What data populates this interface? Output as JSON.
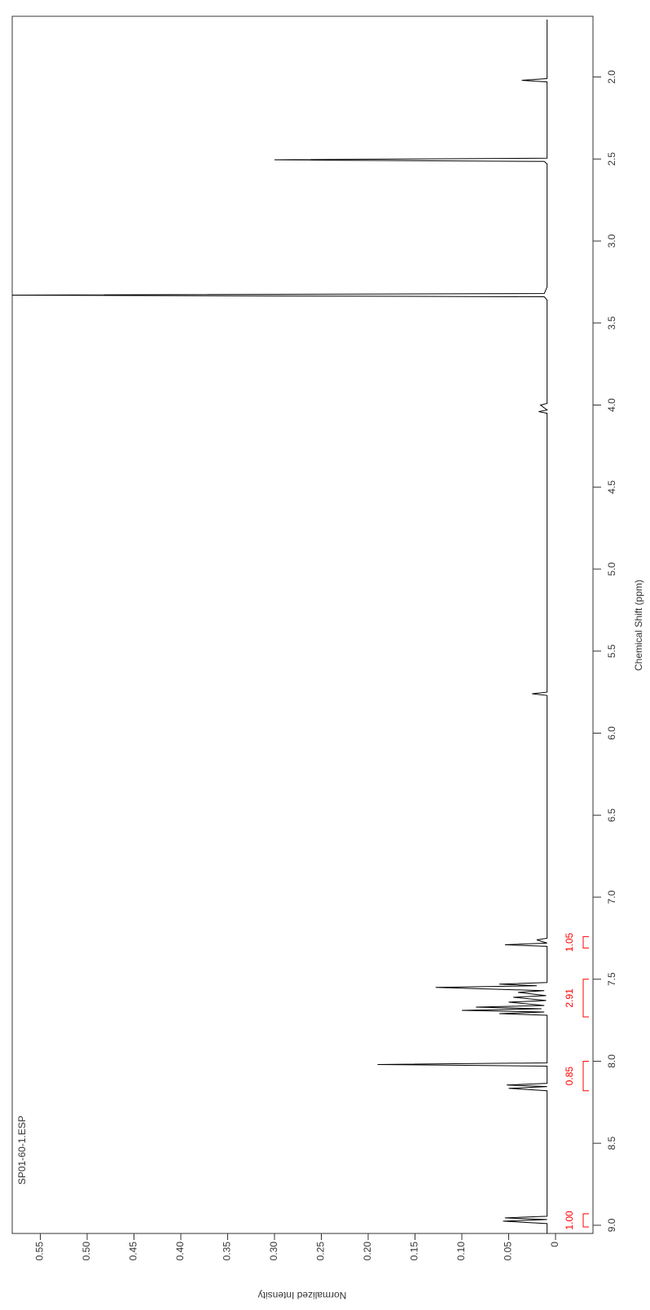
{
  "chart_data": {
    "type": "line",
    "title": "SP01-60-1.ESP",
    "x_label": "Chemical Shift (ppm)",
    "y_label": "Normalized Intensity",
    "color": "#000000",
    "integral_color": "#ff0000",
    "xlim": [
      9.05,
      1.63
    ],
    "ylim": [
      -0.04,
      0.58
    ],
    "xticks": [
      {
        "value": 9,
        "label": "9.0"
      },
      {
        "value": 8.5,
        "label": "8.5"
      },
      {
        "value": 8,
        "label": "8.0"
      },
      {
        "value": 7.5,
        "label": "7.5"
      },
      {
        "value": 7,
        "label": "7.0"
      },
      {
        "value": 6.5,
        "label": "6.5"
      },
      {
        "value": 6,
        "label": "6.0"
      },
      {
        "value": 5.5,
        "label": "5.5"
      },
      {
        "value": 5,
        "label": "5.0"
      },
      {
        "value": 4.5,
        "label": "4.5"
      },
      {
        "value": 4,
        "label": "4.0"
      },
      {
        "value": 3.5,
        "label": "3.5"
      },
      {
        "value": 3,
        "label": "3.0"
      },
      {
        "value": 2.5,
        "label": "2.5"
      },
      {
        "value": 2,
        "label": "2.0"
      }
    ],
    "yticks": [
      0,
      0.05,
      {
        "value": 0.1,
        "label": "0.10"
      },
      0.15,
      {
        "value": 0.2,
        "label": "0.20"
      },
      0.25,
      {
        "value": 0.3,
        "label": "0.30"
      },
      0.35,
      {
        "value": 0.4,
        "label": "0.40"
      },
      0.45,
      {
        "value": 0.5,
        "label": "0.50"
      },
      0.55
    ],
    "x": [
      9.05,
      8.99,
      8.975,
      8.965,
      8.955,
      8.945,
      8.9,
      8.5,
      8.18,
      8.165,
      8.155,
      8.145,
      8.135,
      8.03,
      8.02,
      8.01,
      7.72,
      7.71,
      7.7,
      7.69,
      7.68,
      7.67,
      7.66,
      7.64,
      7.63,
      7.61,
      7.6,
      7.58,
      7.57,
      7.55,
      7.54,
      7.53,
      7.52,
      7.3,
      7.29,
      7.28,
      7.26,
      7.25,
      6.5,
      5.77,
      5.76,
      5.75,
      4.05,
      4.04,
      4.03,
      4.0,
      3.99,
      3.36,
      3.34,
      3.33,
      3.32,
      3.28,
      2.53,
      2.515,
      2.505,
      2.495,
      2.03,
      2.02,
      2.01,
      1.65
    ],
    "values": [
      0.009,
      0.009,
      0.056,
      0.009,
      0.054,
      0.009,
      0.009,
      0.009,
      0.009,
      0.05,
      0.009,
      0.052,
      0.009,
      0.009,
      0.19,
      0.009,
      0.009,
      0.06,
      0.012,
      0.1,
      0.015,
      0.085,
      0.012,
      0.05,
      0.01,
      0.045,
      0.01,
      0.04,
      0.012,
      0.128,
      0.02,
      0.06,
      0.009,
      0.009,
      0.054,
      0.009,
      0.02,
      0.009,
      0.009,
      0.009,
      0.025,
      0.009,
      0.009,
      0.018,
      0.009,
      0.016,
      0.009,
      0.009,
      0.012,
      0.58,
      0.012,
      0.009,
      0.009,
      0.012,
      0.3,
      0.009,
      0.009,
      0.036,
      0.009,
      0.009
    ],
    "integrals": [
      {
        "label": "1.00",
        "from": 9.01,
        "to": 8.93
      },
      {
        "label": "0.85",
        "from": 8.18,
        "to": 8.0
      },
      {
        "label": "2.91",
        "from": 7.73,
        "to": 7.5
      },
      {
        "label": "1.05",
        "from": 7.31,
        "to": 7.24
      }
    ]
  }
}
